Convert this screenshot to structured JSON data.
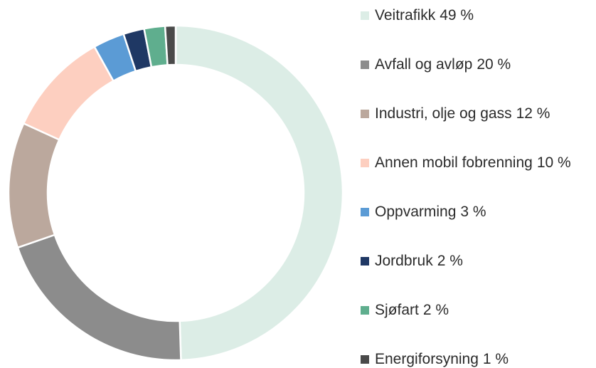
{
  "chart_data": {
    "type": "donut",
    "categories": [
      "Veitrafikk",
      "Avfall og avløp",
      "Industri, olje og gass",
      "Annen mobil fobrenning",
      "Oppvarming",
      "Jordbruk",
      "Sjøfart",
      "Energiforsyning"
    ],
    "values": [
      49,
      20,
      12,
      10,
      3,
      2,
      2,
      1
    ],
    "value_labels": [
      "49 %",
      "20 %",
      "12 %",
      "10 %",
      "3 %",
      "2 %",
      "2 %",
      "1 %"
    ],
    "colors": [
      "#dcede6",
      "#8c8c8c",
      "#bba89d",
      "#fdcfc0",
      "#5b9bd5",
      "#1f3864",
      "#5fae8e",
      "#4a4a4a"
    ],
    "legend": "right"
  }
}
